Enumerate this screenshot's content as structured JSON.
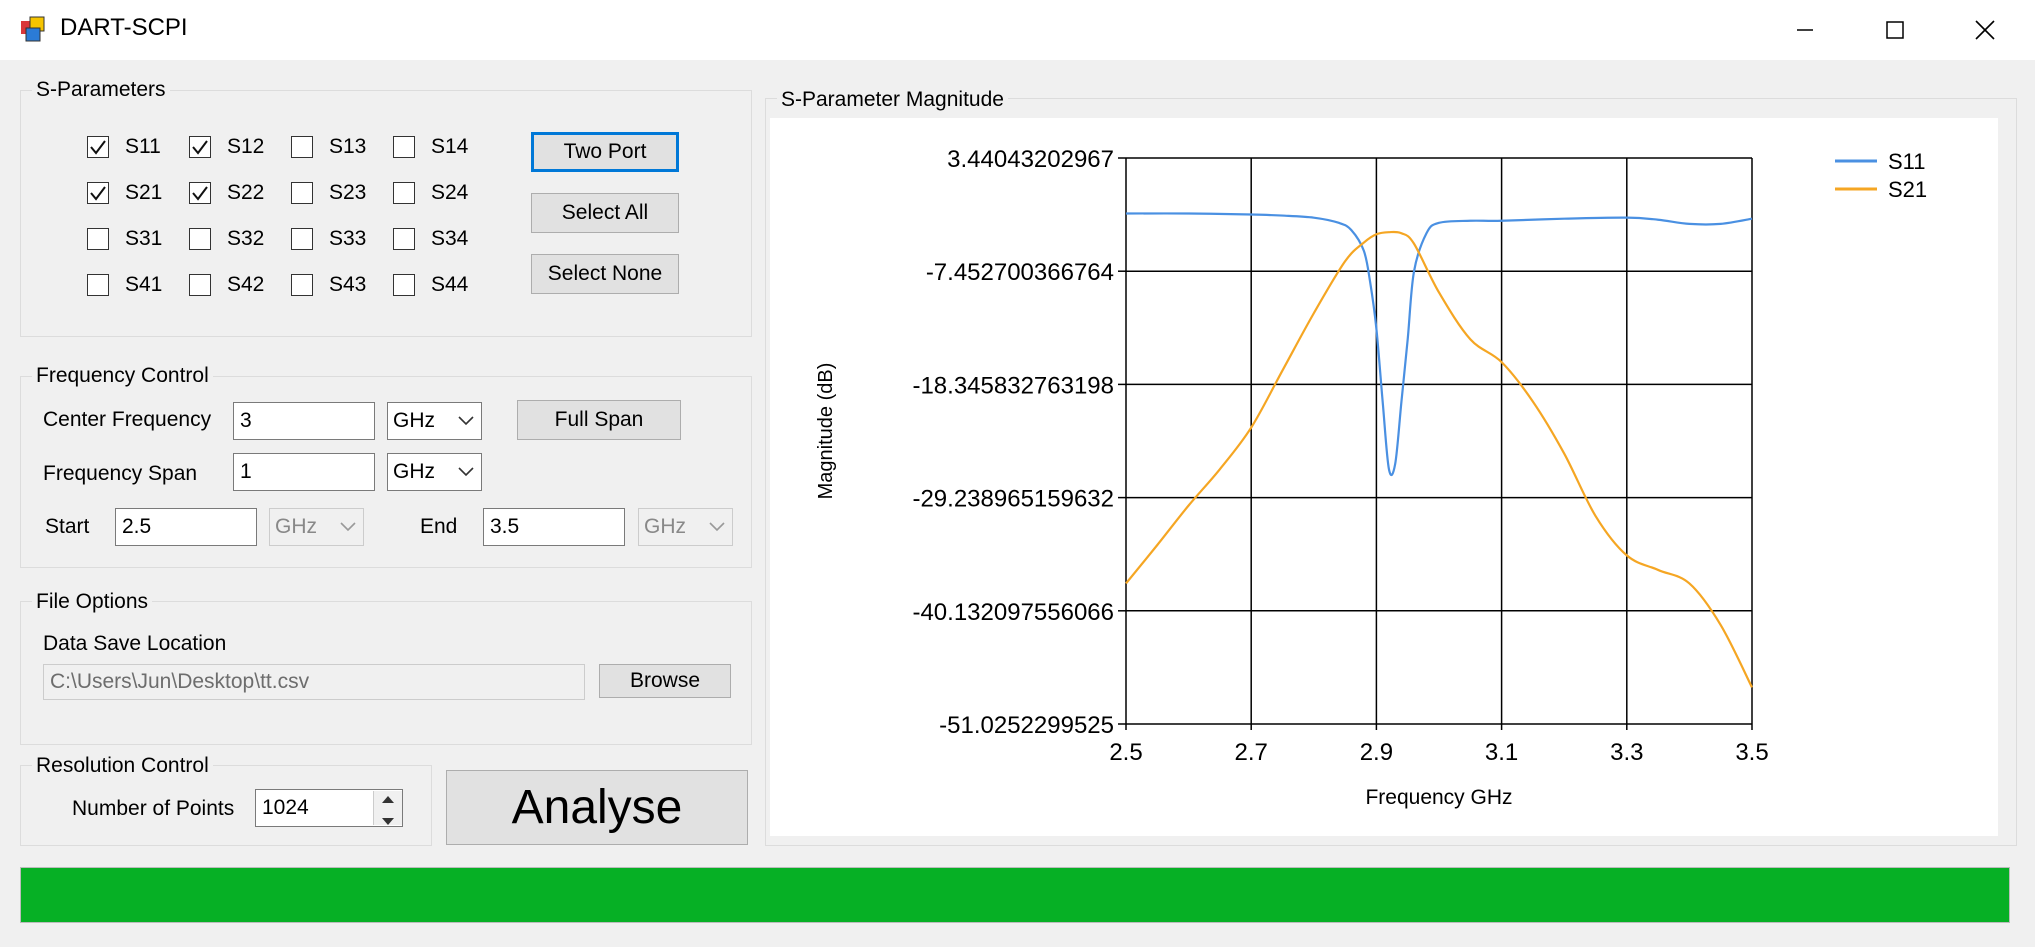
{
  "window": {
    "title": "DART-SCPI",
    "minimize_icon": "minimize-icon",
    "maximize_icon": "maximize-icon",
    "close_icon": "close-icon"
  },
  "sparams": {
    "title": "S-Parameters",
    "checkboxes": [
      {
        "label": "S11",
        "checked": true
      },
      {
        "label": "S12",
        "checked": true
      },
      {
        "label": "S13",
        "checked": false
      },
      {
        "label": "S14",
        "checked": false
      },
      {
        "label": "S21",
        "checked": true
      },
      {
        "label": "S22",
        "checked": true
      },
      {
        "label": "S23",
        "checked": false
      },
      {
        "label": "S24",
        "checked": false
      },
      {
        "label": "S31",
        "checked": false
      },
      {
        "label": "S32",
        "checked": false
      },
      {
        "label": "S33",
        "checked": false
      },
      {
        "label": "S34",
        "checked": false
      },
      {
        "label": "S41",
        "checked": false
      },
      {
        "label": "S42",
        "checked": false
      },
      {
        "label": "S43",
        "checked": false
      },
      {
        "label": "S44",
        "checked": false
      }
    ],
    "two_port_label": "Two Port",
    "select_all_label": "Select All",
    "select_none_label": "Select None"
  },
  "frequency": {
    "title": "Frequency Control",
    "center_label": "Center Frequency",
    "center_value": "3",
    "center_unit": "GHz",
    "full_span_label": "Full Span",
    "span_label": "Frequency Span",
    "span_value": "1",
    "span_unit": "GHz",
    "start_label": "Start",
    "start_value": "2.5",
    "start_unit": "GHz",
    "end_label": "End",
    "end_value": "3.5",
    "end_unit": "GHz"
  },
  "file": {
    "title": "File Options",
    "save_location_label": "Data Save Location",
    "save_location_value": "C:\\Users\\Jun\\Desktop\\tt.csv",
    "browse_label": "Browse"
  },
  "resolution": {
    "title": "Resolution Control",
    "points_label": "Number of Points",
    "points_value": "1024"
  },
  "analyse_label": "Analyse",
  "progress": {
    "value_pct": 100,
    "color": "#06b025"
  },
  "chart_panel_title": "S-Parameter Magnitude",
  "chart_data": {
    "type": "line",
    "xlabel": "Frequency GHz",
    "ylabel": "Magnitude (dB)",
    "xlim": [
      2.5,
      3.5
    ],
    "ylim": [
      -51.0252299525,
      3.44043202967
    ],
    "xticks": [
      "2.5",
      "2.7",
      "2.9",
      "3.1",
      "3.3",
      "3.5"
    ],
    "yticks": [
      "3.44043202967",
      "-7.452700366764",
      "-18.345832763198",
      "-29.238965159632",
      "-40.132097556066",
      "-51.0252299525"
    ],
    "ytick_values": [
      3.44043202967,
      -7.452700366764,
      -18.345832763198,
      -29.238965159632,
      -40.132097556066,
      -51.0252299525
    ],
    "grid": true,
    "legend_position": "top-right",
    "series": [
      {
        "name": "S11",
        "color": "#4a90e2",
        "x": [
          2.5,
          2.6,
          2.7,
          2.75,
          2.8,
          2.84,
          2.86,
          2.88,
          2.89,
          2.9,
          2.91,
          2.92,
          2.93,
          2.94,
          2.95,
          2.96,
          2.98,
          3.0,
          3.05,
          3.1,
          3.2,
          3.3,
          3.35,
          3.4,
          3.45,
          3.5
        ],
        "y": [
          -1.9,
          -1.9,
          -2.0,
          -2.1,
          -2.3,
          -2.8,
          -3.5,
          -5.5,
          -8.5,
          -13,
          -20,
          -26.5,
          -26,
          -20,
          -14,
          -7.5,
          -3.8,
          -2.8,
          -2.6,
          -2.6,
          -2.4,
          -2.3,
          -2.5,
          -2.9,
          -2.9,
          -2.4
        ]
      },
      {
        "name": "S21",
        "color": "#f5a623",
        "x": [
          2.5,
          2.55,
          2.6,
          2.65,
          2.7,
          2.75,
          2.8,
          2.85,
          2.88,
          2.9,
          2.92,
          2.94,
          2.96,
          3.0,
          3.05,
          3.1,
          3.15,
          3.2,
          3.25,
          3.3,
          3.35,
          3.4,
          3.45,
          3.5
        ],
        "y": [
          -37.5,
          -33.8,
          -30.0,
          -26.5,
          -22.5,
          -17.0,
          -11.5,
          -6.5,
          -4.7,
          -3.9,
          -3.7,
          -3.8,
          -4.8,
          -9.5,
          -14.0,
          -16.2,
          -20.0,
          -25.0,
          -31.0,
          -34.8,
          -36.2,
          -37.5,
          -41.5,
          -47.5
        ]
      }
    ]
  }
}
